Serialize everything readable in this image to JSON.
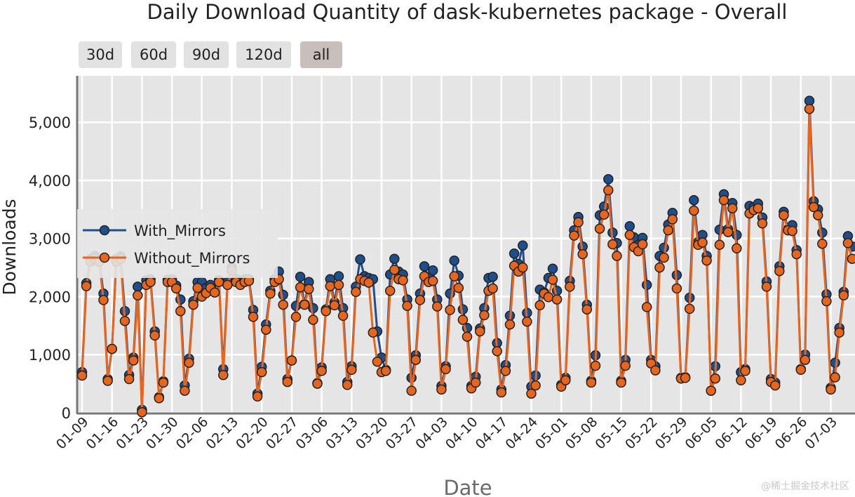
{
  "title": "Daily Download Quantity of dask-kubernetes package - Overall",
  "range_buttons": [
    "30d",
    "60d",
    "90d",
    "120d",
    "all"
  ],
  "active_range": "all",
  "watermark": "@稀土掘金技术社区",
  "colors": {
    "with_mirrors": "#1f4e8c",
    "without_mirrors": "#e8651e",
    "plot_bg": "#e5e5e5",
    "grid": "#ffffff"
  },
  "chart_data": {
    "type": "line",
    "title": "Daily Download Quantity of dask-kubernetes package - Overall",
    "xlabel": "Date",
    "ylabel": "Downloads",
    "ylim": [
      0,
      5800
    ],
    "yticks": [
      0,
      1000,
      2000,
      3000,
      4000,
      5000
    ],
    "ytick_labels": [
      "0",
      "1,000",
      "2,000",
      "3,000",
      "4,000",
      "5,000"
    ],
    "xtick_labels": [
      "01-09",
      "01-16",
      "01-23",
      "01-30",
      "02-06",
      "02-13",
      "02-20",
      "02-27",
      "03-06",
      "03-13",
      "03-20",
      "03-27",
      "04-03",
      "04-10",
      "04-17",
      "04-24",
      "05-01",
      "05-08",
      "05-15",
      "05-22",
      "05-29",
      "06-05",
      "06-12",
      "06-19",
      "06-26",
      "07-03"
    ],
    "x_start": "01-09",
    "grid": true,
    "legend_position": "left",
    "series": [
      {
        "name": "With_Mirrors",
        "values": [
          700,
          2230,
          2650,
          2700,
          2650,
          2050,
          580,
          1100,
          2650,
          2690,
          1750,
          650,
          950,
          2170,
          50,
          2280,
          2300,
          1400,
          270,
          540,
          2290,
          2300,
          2190,
          1950,
          470,
          930,
          1920,
          2250,
          2250,
          2150,
          2200,
          2100,
          2280,
          750,
          2250,
          2500,
          2300,
          2250,
          2300,
          2300,
          1770,
          330,
          790,
          1520,
          2100,
          2300,
          2430,
          2030,
          580,
          900,
          1840,
          2340,
          1870,
          2250,
          1800,
          510,
          780,
          1780,
          2300,
          1900,
          2350,
          1800,
          530,
          800,
          2170,
          2640,
          2350,
          2320,
          2300,
          1400,
          950,
          740,
          2380,
          2650,
          2430,
          2380,
          1950,
          600,
          990,
          2050,
          2520,
          2330,
          2450,
          1950,
          460,
          800,
          2050,
          2620,
          2360,
          1780,
          1460,
          460,
          620,
          1450,
          1800,
          2320,
          2340,
          1200,
          400,
          820,
          1670,
          2740,
          2560,
          2880,
          1720,
          450,
          640,
          2120,
          2070,
          2320,
          2480,
          2100,
          480,
          600,
          2270,
          3140,
          3370,
          2860,
          1860,
          550,
          990,
          3400,
          3550,
          4020,
          3100,
          2920,
          550,
          910,
          3210,
          3020,
          2890,
          3010,
          2200,
          910,
          800,
          2700,
          2840,
          3240,
          3440,
          2370,
          600,
          610,
          1980,
          3660,
          2940,
          3060,
          2700,
          380,
          800,
          3150,
          3760,
          3160,
          3610,
          3060,
          700,
          750,
          3560,
          3540,
          3600,
          3360,
          2260,
          580,
          520,
          2520,
          3460,
          3160,
          3230,
          2800,
          750,
          1000,
          5370,
          3640,
          3500,
          3100,
          2040,
          430,
          860,
          1460,
          2080,
          3040,
          2860
        ]
      },
      {
        "name": "Without_Mirrors",
        "values": [
          640,
          2180,
          2600,
          2650,
          2600,
          1940,
          550,
          1100,
          2600,
          2650,
          1580,
          580,
          900,
          2020,
          10,
          2200,
          2250,
          1330,
          250,
          520,
          2250,
          2250,
          2140,
          1750,
          380,
          860,
          1860,
          2150,
          2000,
          2060,
          2150,
          2070,
          2250,
          650,
          2200,
          2450,
          2250,
          2200,
          2250,
          2270,
          1650,
          280,
          700,
          1430,
          2050,
          2250,
          2300,
          1860,
          530,
          900,
          1650,
          2160,
          1860,
          2130,
          1600,
          500,
          720,
          1750,
          2180,
          1850,
          2200,
          1670,
          480,
          740,
          2080,
          2300,
          2270,
          2240,
          1380,
          880,
          700,
          720,
          2100,
          2460,
          2300,
          2280,
          1840,
          380,
          910,
          1940,
          2350,
          2250,
          2270,
          1830,
          400,
          750,
          1770,
          2350,
          2150,
          1600,
          1310,
          420,
          520,
          1400,
          1680,
          2100,
          2140,
          1060,
          350,
          720,
          1520,
          2530,
          2430,
          2500,
          1570,
          330,
          470,
          1850,
          2050,
          1990,
          2290,
          1950,
          450,
          560,
          2170,
          3050,
          3280,
          2730,
          1780,
          520,
          810,
          3170,
          3410,
          3830,
          2900,
          2700,
          520,
          810,
          3060,
          2850,
          2780,
          2900,
          1820,
          850,
          730,
          2500,
          2670,
          3140,
          3330,
          2140,
          590,
          600,
          1790,
          3480,
          2890,
          2930,
          2620,
          380,
          590,
          2890,
          3660,
          3110,
          3520,
          2830,
          560,
          720,
          3430,
          3490,
          3520,
          3260,
          2170,
          530,
          470,
          2440,
          3400,
          3140,
          3130,
          2730,
          740,
          910,
          5230,
          3540,
          3400,
          2910,
          1920,
          400,
          610,
          1380,
          2020,
          2920,
          2650
        ]
      }
    ]
  }
}
